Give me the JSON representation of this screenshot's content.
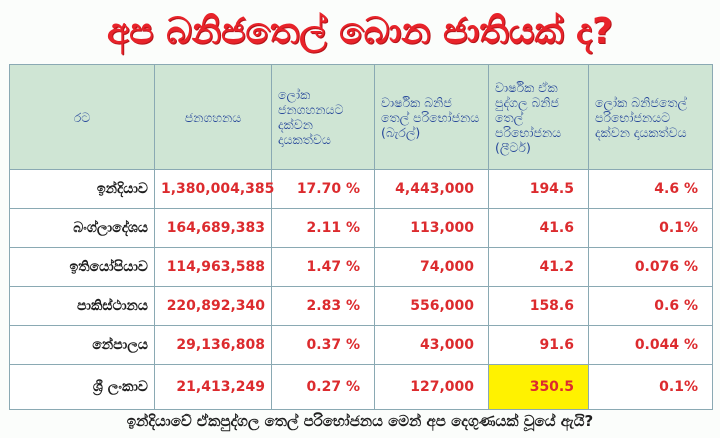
{
  "title": "අප බනිජතෙල් බොන ජාතියක් ද?",
  "table": {
    "headers": [
      "රට",
      "ජනගහනය",
      "ලෝක ජනගහනයට දක්වන දායකත්වය",
      "වාර්ෂික බනිජ තෙල් පරිභෝජනය (බැරල්)",
      "වාර්ෂික ඒක පුද්ගල බනිජ තෙල් පරිභෝජනය (ලීටර්)",
      "ලෝක බනිජතෙල් පරිභෝජනයට දක්වන දායකත්වය"
    ],
    "rows": [
      [
        "ඉන්දියාව",
        "1,380,004,385",
        "17.70 %",
        "4,443,000",
        "194.5",
        "4.6 %"
      ],
      [
        "බංග්ලාදේශය",
        "164,689,383",
        "2.11 %",
        "113,000",
        "41.6",
        "0.1%"
      ],
      [
        "ඉතියෝපියාව",
        "114,963,588",
        "1.47 %",
        "74,000",
        "41.2",
        "0.076 %"
      ],
      [
        "පාකිස්ථානය",
        "220,892,340",
        "2.83 %",
        "556,000",
        "158.6",
        "0.6 %"
      ],
      [
        "නේපාලය",
        "29,136,808",
        "0.37 %",
        "43,000",
        "91.6",
        "0.044 %"
      ],
      [
        "ශ්‍රී ලංකාව",
        "21,413,249",
        "0.27 %",
        "127,000",
        "350.5",
        "0.1%"
      ]
    ]
  },
  "footer": "ඉන්දියාවේ ඒකපුද්ගල තෙල් පරිභෝජනය මෙන් අප දෙගුණයක් වූයේ ඇයි?",
  "colors": {
    "title": "#e8232a",
    "header_bg": "#cfe5d4",
    "header_text": "#26479a",
    "value_text": "#dc2b2e",
    "highlight": "#fff200"
  },
  "highlight_cell": {
    "country": "ශ්‍රී ලංකාව",
    "column": "වාර්ෂික ඒක පුද්ගල බනිජ තෙල් පරිභෝජනය (ලීටර්)"
  }
}
